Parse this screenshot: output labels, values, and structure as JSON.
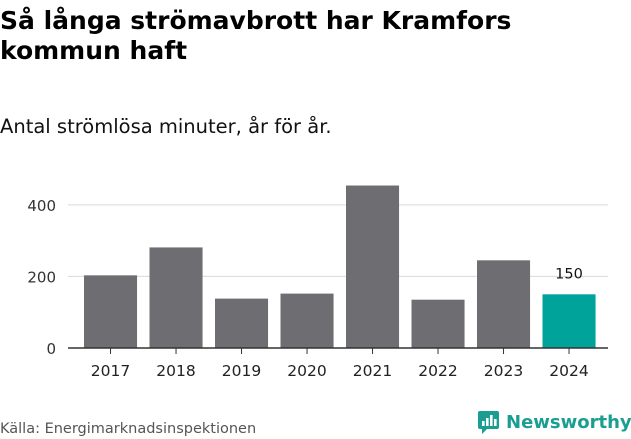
{
  "header": {
    "title": "Så långa strömavbrott har Kramfors kommun haft",
    "subtitle": "Antal strömlösa minuter, år för år."
  },
  "footer": {
    "source": "Källa: Energimarknadsinspektionen",
    "brand": "Newsworthy"
  },
  "colors": {
    "bar_default": "#6e6d72",
    "bar_highlight": "#00a39a",
    "grid": "#d9d9d9",
    "axis": "#333333",
    "brand": "#1a9e92"
  },
  "chart_data": {
    "type": "bar",
    "categories": [
      "2017",
      "2018",
      "2019",
      "2020",
      "2021",
      "2022",
      "2023",
      "2024"
    ],
    "values": [
      203,
      281,
      138,
      152,
      454,
      135,
      245,
      150
    ],
    "highlight_index": 7,
    "data_labels": [
      {
        "index": 7,
        "text": "150"
      }
    ],
    "y_ticks": [
      0,
      200,
      400
    ],
    "ylim": [
      0,
      475
    ],
    "grid": true,
    "legend": "none"
  }
}
